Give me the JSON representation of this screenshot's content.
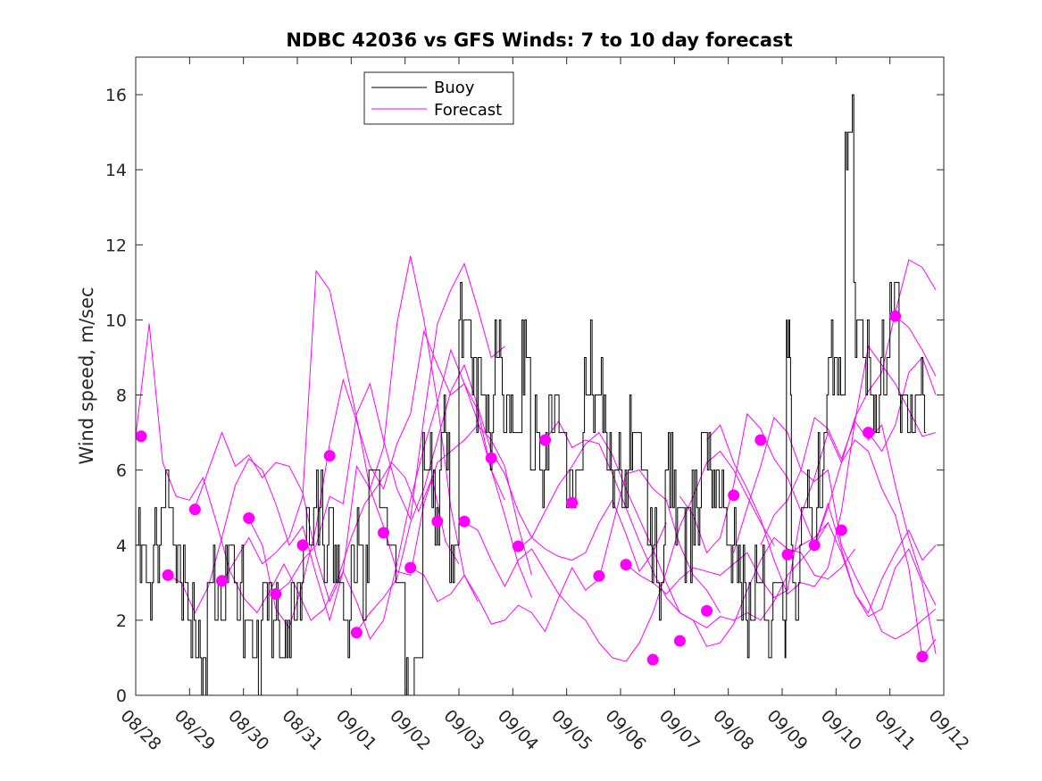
{
  "chart_data": {
    "type": "line",
    "title": "NDBC 42036 vs GFS Winds: 7 to 10 day forecast",
    "xlabel": "",
    "ylabel": "Wind speed, m/sec",
    "xlim": [
      0,
      15
    ],
    "ylim": [
      0,
      17
    ],
    "yticks": [
      0,
      2,
      4,
      6,
      8,
      10,
      12,
      14,
      16
    ],
    "xtick_labels": [
      "08/28",
      "08/29",
      "08/30",
      "08/31",
      "09/01",
      "09/02",
      "09/03",
      "09/04",
      "09/05",
      "09/06",
      "09/07",
      "09/08",
      "09/09",
      "09/10",
      "09/11",
      "09/12"
    ],
    "legend": {
      "placement": "top-left",
      "entries": [
        "Buoy",
        "Forecast"
      ]
    },
    "colors": {
      "buoy": "#000000",
      "forecast": "#ff00ff"
    },
    "buoy": {
      "name": "Buoy",
      "t": [
        0.0,
        0.17,
        0.33,
        0.5,
        0.67,
        0.83,
        1.0,
        1.17,
        1.33,
        1.5,
        1.67,
        1.83,
        2.0,
        2.17,
        2.33,
        2.5,
        2.67,
        2.83,
        3.0,
        3.17,
        3.33,
        3.5,
        3.67,
        3.83,
        4.0,
        4.17,
        4.33,
        4.5,
        4.67,
        4.83,
        5.0,
        5.17,
        5.33,
        5.5,
        5.67,
        5.83,
        6.0,
        6.17,
        6.33,
        6.5,
        6.67,
        6.83,
        7.0,
        7.17,
        7.33,
        7.5,
        7.67,
        7.83,
        8.0,
        8.17,
        8.33,
        8.5,
        8.67,
        8.83,
        9.0,
        9.17,
        9.33,
        9.5,
        9.67,
        9.83,
        10.0,
        10.17,
        10.33,
        10.5,
        10.67,
        10.83,
        11.0,
        11.17,
        11.33,
        11.5,
        11.67,
        11.83,
        12.0,
        12.08,
        12.17,
        12.33,
        12.5,
        12.67,
        12.83,
        13.0,
        13.17,
        13.33,
        13.5,
        13.67,
        13.83,
        14.0,
        14.17,
        14.33,
        14.5
      ],
      "values": [
        4,
        3,
        4,
        5,
        4,
        3,
        2,
        1,
        3,
        2,
        4,
        3,
        2,
        1,
        3,
        2,
        1,
        2,
        3,
        4,
        5,
        4,
        3,
        2,
        4,
        3,
        6,
        5,
        4,
        3,
        0,
        1,
        6,
        5,
        7,
        4,
        10,
        9,
        8,
        7,
        9,
        8,
        7,
        9,
        7,
        6,
        8,
        7,
        5,
        6,
        9,
        8,
        7,
        6,
        5,
        7,
        6,
        4,
        3,
        6,
        5,
        4,
        5,
        7,
        6,
        5,
        4,
        3,
        2,
        3,
        2,
        3,
        2,
        9,
        3,
        5,
        4,
        6,
        9,
        8,
        15,
        10,
        9,
        8,
        9,
        11,
        8,
        7,
        8
      ]
    },
    "forecast_series": [
      {
        "t0": 0.0,
        "values": [
          6.9,
          9.9,
          6.2,
          5.3,
          5.2,
          5.8,
          4.6,
          3.3,
          2.6,
          2.2,
          2.8,
          3.5,
          2.8,
          2.0,
          2.3,
          3.1,
          4.2,
          5.1,
          5.6,
          6.2,
          5.8,
          4.9,
          5.8,
          4.1,
          3.5
        ]
      },
      {
        "t0": 0.6,
        "values": [
          3.2,
          3.0,
          2.2,
          2.9,
          4.2,
          5.6,
          6.3,
          6.0,
          5.1,
          4.0,
          4.5,
          3.2,
          2.0,
          3.3,
          6.1,
          5.5,
          6.6,
          9.9,
          11.7,
          10.0,
          7.8,
          5.0,
          3.2,
          2.5
        ]
      },
      {
        "t0": 1.1,
        "values": [
          5.0,
          6.0,
          7.0,
          6.1,
          6.4,
          5.8,
          6.2,
          6.1,
          5.4,
          3.7,
          2.5,
          3.3,
          2.5,
          1.5,
          2.0,
          3.5,
          5.2,
          6.6,
          7.8,
          9.2,
          8.3,
          7.6,
          6.0,
          5.2
        ]
      },
      {
        "t0": 1.6,
        "values": [
          3.0,
          3.6,
          4.2,
          3.5,
          3.8,
          4.2,
          5.3,
          11.3,
          10.8,
          9.1,
          7.4,
          5.5,
          4.5,
          3.3,
          3.2,
          5.1,
          6.2,
          6.5,
          6.8,
          7.2,
          6.8,
          6.1,
          4.5,
          3.2
        ]
      },
      {
        "t0": 2.1,
        "values": [
          4.7,
          4.0,
          2.3,
          1.8,
          3.0,
          4.5,
          6.7,
          8.4,
          7.3,
          6.1,
          5.5,
          6.7,
          7.5,
          9.7,
          8.8,
          8.0,
          8.3,
          7.3,
          6.0,
          4.8,
          3.5,
          2.6
        ]
      },
      {
        "t0": 2.6,
        "values": [
          2.7,
          3.0,
          3.6,
          4.0,
          5.3,
          5.1,
          7.5,
          8.3,
          6.8,
          5.5,
          4.7,
          7.4,
          9.9,
          10.8,
          11.5,
          10.3,
          9.0,
          9.3
        ]
      },
      {
        "t0": 4.1,
        "values": [
          1.7,
          2.2,
          2.6,
          3.1,
          4.6,
          5.5,
          6.8,
          8.1,
          8.8,
          7.7,
          6.5,
          5.9,
          4.9,
          4.2,
          3.9,
          3.7,
          3.6,
          3.8,
          4.6,
          5.2,
          4.3,
          3.3,
          3.8,
          4.6
        ]
      },
      {
        "t0": 5.1,
        "values": [
          3.4,
          3.2,
          2.5,
          2.7,
          3.2,
          2.6,
          1.9,
          2.0,
          2.4,
          2.2,
          1.7,
          2.6,
          3.4,
          2.8,
          3.1,
          4.5,
          5.9,
          6.0,
          5.5,
          5.2,
          4.0,
          3.2,
          2.8,
          2.2
        ]
      },
      {
        "t0": 6.1,
        "values": [
          4.6,
          4.4,
          3.6,
          2.9,
          3.6,
          3.9,
          3.3,
          2.7,
          2.3,
          2.0,
          1.4,
          1.0,
          0.9,
          1.4,
          2.2,
          3.3,
          4.5,
          5.3,
          6.2,
          6.5,
          6.0,
          5.3,
          4.6,
          4.0
        ]
      },
      {
        "t0": 7.1,
        "values": [
          3.9,
          4.2,
          4.9,
          5.6,
          6.1,
          6.7,
          7.0,
          6.4,
          5.5,
          4.7,
          3.9,
          3.0,
          2.2,
          2.0,
          1.8,
          2.1,
          2.0,
          2.2,
          2.0,
          2.5,
          3.2,
          3.6,
          4.0,
          4.6
        ]
      },
      {
        "t0": 7.6,
        "values": [
          6.8,
          7.3,
          6.6,
          6.8,
          6.7,
          5.9,
          5.0,
          4.1,
          3.3,
          2.6,
          2.2,
          2.0,
          1.3,
          1.4,
          1.9,
          2.8,
          3.6,
          4.2,
          3.9,
          3.8,
          3.2,
          3.1,
          3.4,
          3.9
        ]
      },
      {
        "t0": 9.1,
        "values": [
          3.5,
          3.2,
          3.0,
          2.7,
          3.1,
          3.4,
          3.3,
          3.2,
          3.5,
          3.8,
          3.1,
          2.6,
          2.8,
          4.8,
          5.8,
          7.0,
          6.2,
          6.8,
          6.5,
          5.5,
          4.8,
          3.4,
          1.0,
          1.5
        ]
      },
      {
        "t0": 10.1,
        "values": [
          5.3,
          4.8,
          3.8,
          4.2,
          5.6,
          7.5,
          7.1,
          6.3,
          5.8,
          4.9,
          4.0,
          5.1,
          3.9,
          2.7,
          2.2,
          3.1,
          3.8,
          4.4,
          3.6,
          4.0,
          4.8,
          5.5,
          5.8,
          5.0
        ]
      },
      {
        "t0": 10.6,
        "values": [
          6.8,
          7.2,
          6.2,
          5.5,
          4.7,
          3.6,
          2.7,
          3.0,
          2.9,
          3.4,
          4.9,
          7.3,
          9.3,
          8.8,
          8.3,
          7.6,
          6.9,
          7.0,
          6.7,
          6.9,
          5.5,
          4.6,
          3.0,
          2.5
        ]
      },
      {
        "t0": 11.1,
        "values": [
          3.8,
          5.0,
          6.1,
          7.4,
          7.0,
          6.0,
          5.7,
          6.0,
          4.0,
          3.2,
          2.5,
          1.7,
          1.5,
          1.7,
          2.0,
          2.3,
          2.8,
          3.0,
          2.5,
          1.6,
          1.3,
          1.1,
          1.2,
          1.4
        ]
      },
      {
        "t0": 11.6,
        "values": [
          4.0,
          4.8,
          5.2,
          6.0,
          7.4,
          7.1,
          6.3,
          7.3,
          6.8,
          7.2,
          5.6,
          4.2,
          3.1,
          2.4,
          2.0,
          3.2,
          3.6,
          3.0,
          3.3,
          3.6,
          2.9,
          2.1,
          1.6,
          1.4
        ]
      },
      {
        "t0": 12.1,
        "values": [
          3.7,
          4.0,
          4.2,
          4.6,
          3.8,
          2.7,
          2.1,
          2.3,
          3.4,
          3.9,
          3.0,
          1.1,
          1.9,
          2.5,
          3.2,
          3.6,
          3.1,
          2.7,
          3.0,
          3.4,
          3.2,
          3.0,
          2.6,
          2.2
        ]
      },
      {
        "t0": 12.6,
        "values": [
          4.0,
          5.0,
          6.2,
          7.4,
          8.1,
          8.6,
          10.2,
          11.6,
          11.4,
          10.8,
          10.3,
          9.2,
          8.5,
          8.0,
          7.4,
          6.8,
          6.3,
          6.6,
          5.9,
          4.6,
          3.0,
          2.5,
          2.2,
          2.0
        ]
      },
      {
        "t0": 13.6,
        "values": [
          7.0,
          6.5,
          7.2,
          8.6,
          9.0,
          8.0,
          7.7,
          7.5,
          7.6,
          7.3,
          7.0,
          6.4,
          5.6,
          4.7,
          3.5
        ]
      },
      {
        "t0": 14.1,
        "values": [
          10.1,
          9.8,
          9.2,
          8.5,
          8.5,
          8.1,
          7.5,
          6.9,
          6.3,
          5.6,
          4.7
        ]
      }
    ],
    "forecast_points": {
      "t": [
        0.1,
        0.6,
        1.1,
        1.6,
        2.1,
        2.6,
        3.1,
        3.6,
        4.1,
        4.6,
        5.1,
        5.6,
        6.1,
        6.6,
        7.1,
        7.6,
        8.1,
        8.6,
        9.1,
        9.6,
        10.1,
        10.6,
        11.1,
        11.6,
        12.1,
        12.6,
        13.1,
        13.6,
        14.1,
        14.6
      ],
      "values": [
        6.9,
        3.2,
        4.95,
        3.05,
        4.72,
        2.7,
        4.0,
        6.38,
        1.67,
        4.33,
        3.4,
        4.63,
        4.63,
        6.32,
        3.97,
        6.8,
        5.13,
        3.18,
        3.48,
        0.95,
        1.45,
        2.25,
        5.33,
        6.8,
        3.75,
        4.0,
        4.4,
        7.0,
        10.1,
        1.03
      ]
    }
  }
}
